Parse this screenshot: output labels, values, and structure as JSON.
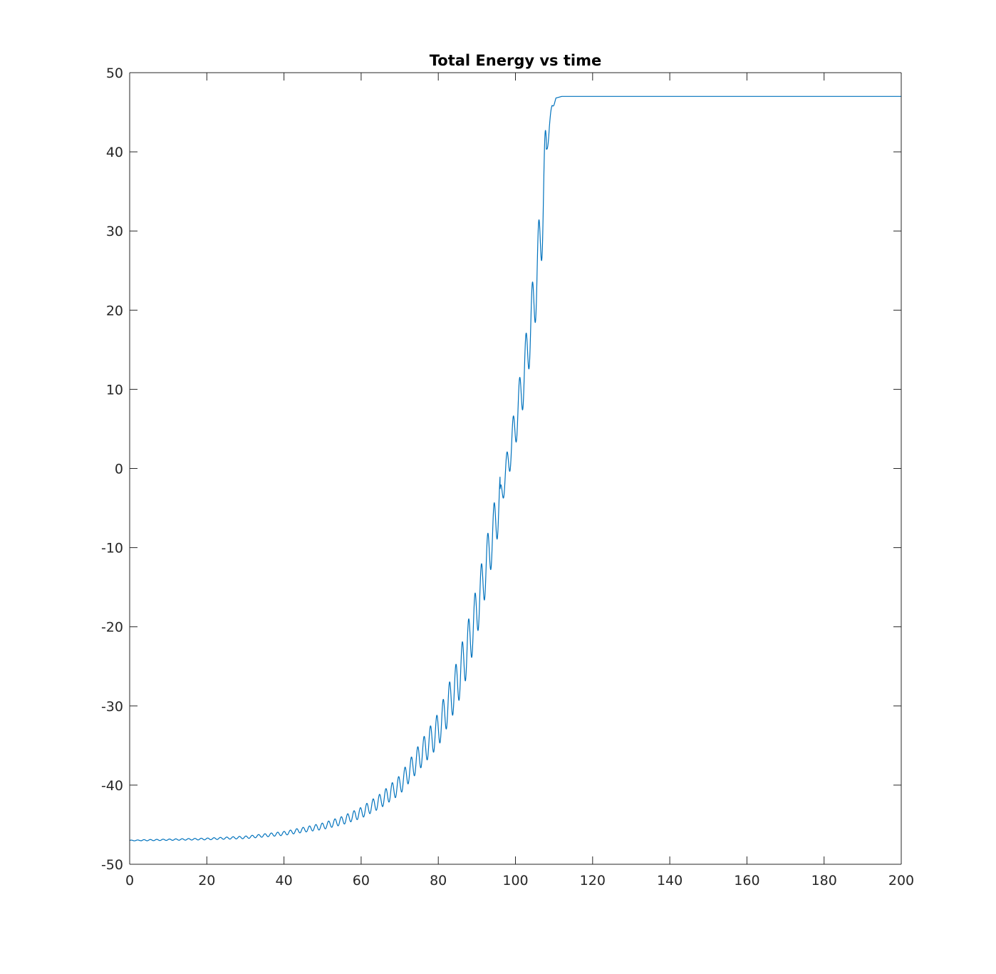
{
  "chart_data": {
    "type": "line",
    "title": "Total Energy vs time",
    "xlabel": "",
    "ylabel": "",
    "xlim": [
      0,
      200
    ],
    "ylim": [
      -50,
      50
    ],
    "xticks": [
      0,
      20,
      40,
      60,
      80,
      100,
      120,
      140,
      160,
      180,
      200
    ],
    "yticks": [
      -50,
      -40,
      -30,
      -20,
      -10,
      0,
      10,
      20,
      30,
      40,
      50
    ],
    "xtick_labels": [
      "0",
      "20",
      "40",
      "60",
      "80",
      "100",
      "120",
      "140",
      "160",
      "180",
      "200"
    ],
    "ytick_labels": [
      "-50",
      "-40",
      "-30",
      "-20",
      "-10",
      "0",
      "10",
      "20",
      "30",
      "40",
      "50"
    ],
    "grid": false,
    "legend": "none",
    "series": [
      {
        "color": "#0072BD",
        "description": "oscillating rise from about -47 to about 47, plateau after t≈110",
        "envelope_mean": [
          [
            0,
            -47
          ],
          [
            20,
            -46.8
          ],
          [
            30,
            -46.6
          ],
          [
            40,
            -46.1
          ],
          [
            50,
            -45.2
          ],
          [
            55,
            -44.5
          ],
          [
            60,
            -43.5
          ],
          [
            65,
            -42
          ],
          [
            70,
            -40
          ],
          [
            75,
            -36.5
          ],
          [
            80,
            -33
          ],
          [
            85,
            -27
          ],
          [
            88,
            -22
          ],
          [
            90,
            -18
          ],
          [
            93,
            -11
          ],
          [
            96,
            -4
          ],
          [
            98,
            0.5
          ],
          [
            100,
            5.5
          ],
          [
            102,
            11
          ],
          [
            104,
            18
          ],
          [
            105.5,
            24
          ],
          [
            107,
            32
          ],
          [
            108,
            40
          ],
          [
            108.8,
            43.5
          ],
          [
            109.5,
            45.5
          ],
          [
            110.5,
            46.8
          ],
          [
            112,
            47
          ],
          [
            200,
            47
          ]
        ],
        "oscillation_peaks": [
          [
            96.2,
            -4.6
          ],
          [
            97.7,
            3.9
          ],
          [
            99.3,
            8.9
          ],
          [
            101.0,
            14.5
          ],
          [
            102.6,
            20.7
          ],
          [
            104.3,
            27.8
          ],
          [
            106.1,
            36.3
          ],
          [
            108.7,
            46.5
          ]
        ],
        "oscillation_troughs": [
          [
            96.8,
            -7.5
          ],
          [
            98.4,
            -2.9
          ],
          [
            100.0,
            2.3
          ],
          [
            101.7,
            8.0
          ],
          [
            103.3,
            14.6
          ],
          [
            105.0,
            21.7
          ],
          [
            107.0,
            29.7
          ],
          [
            108.9,
            45.3
          ]
        ],
        "period": 1.65
      }
    ]
  }
}
